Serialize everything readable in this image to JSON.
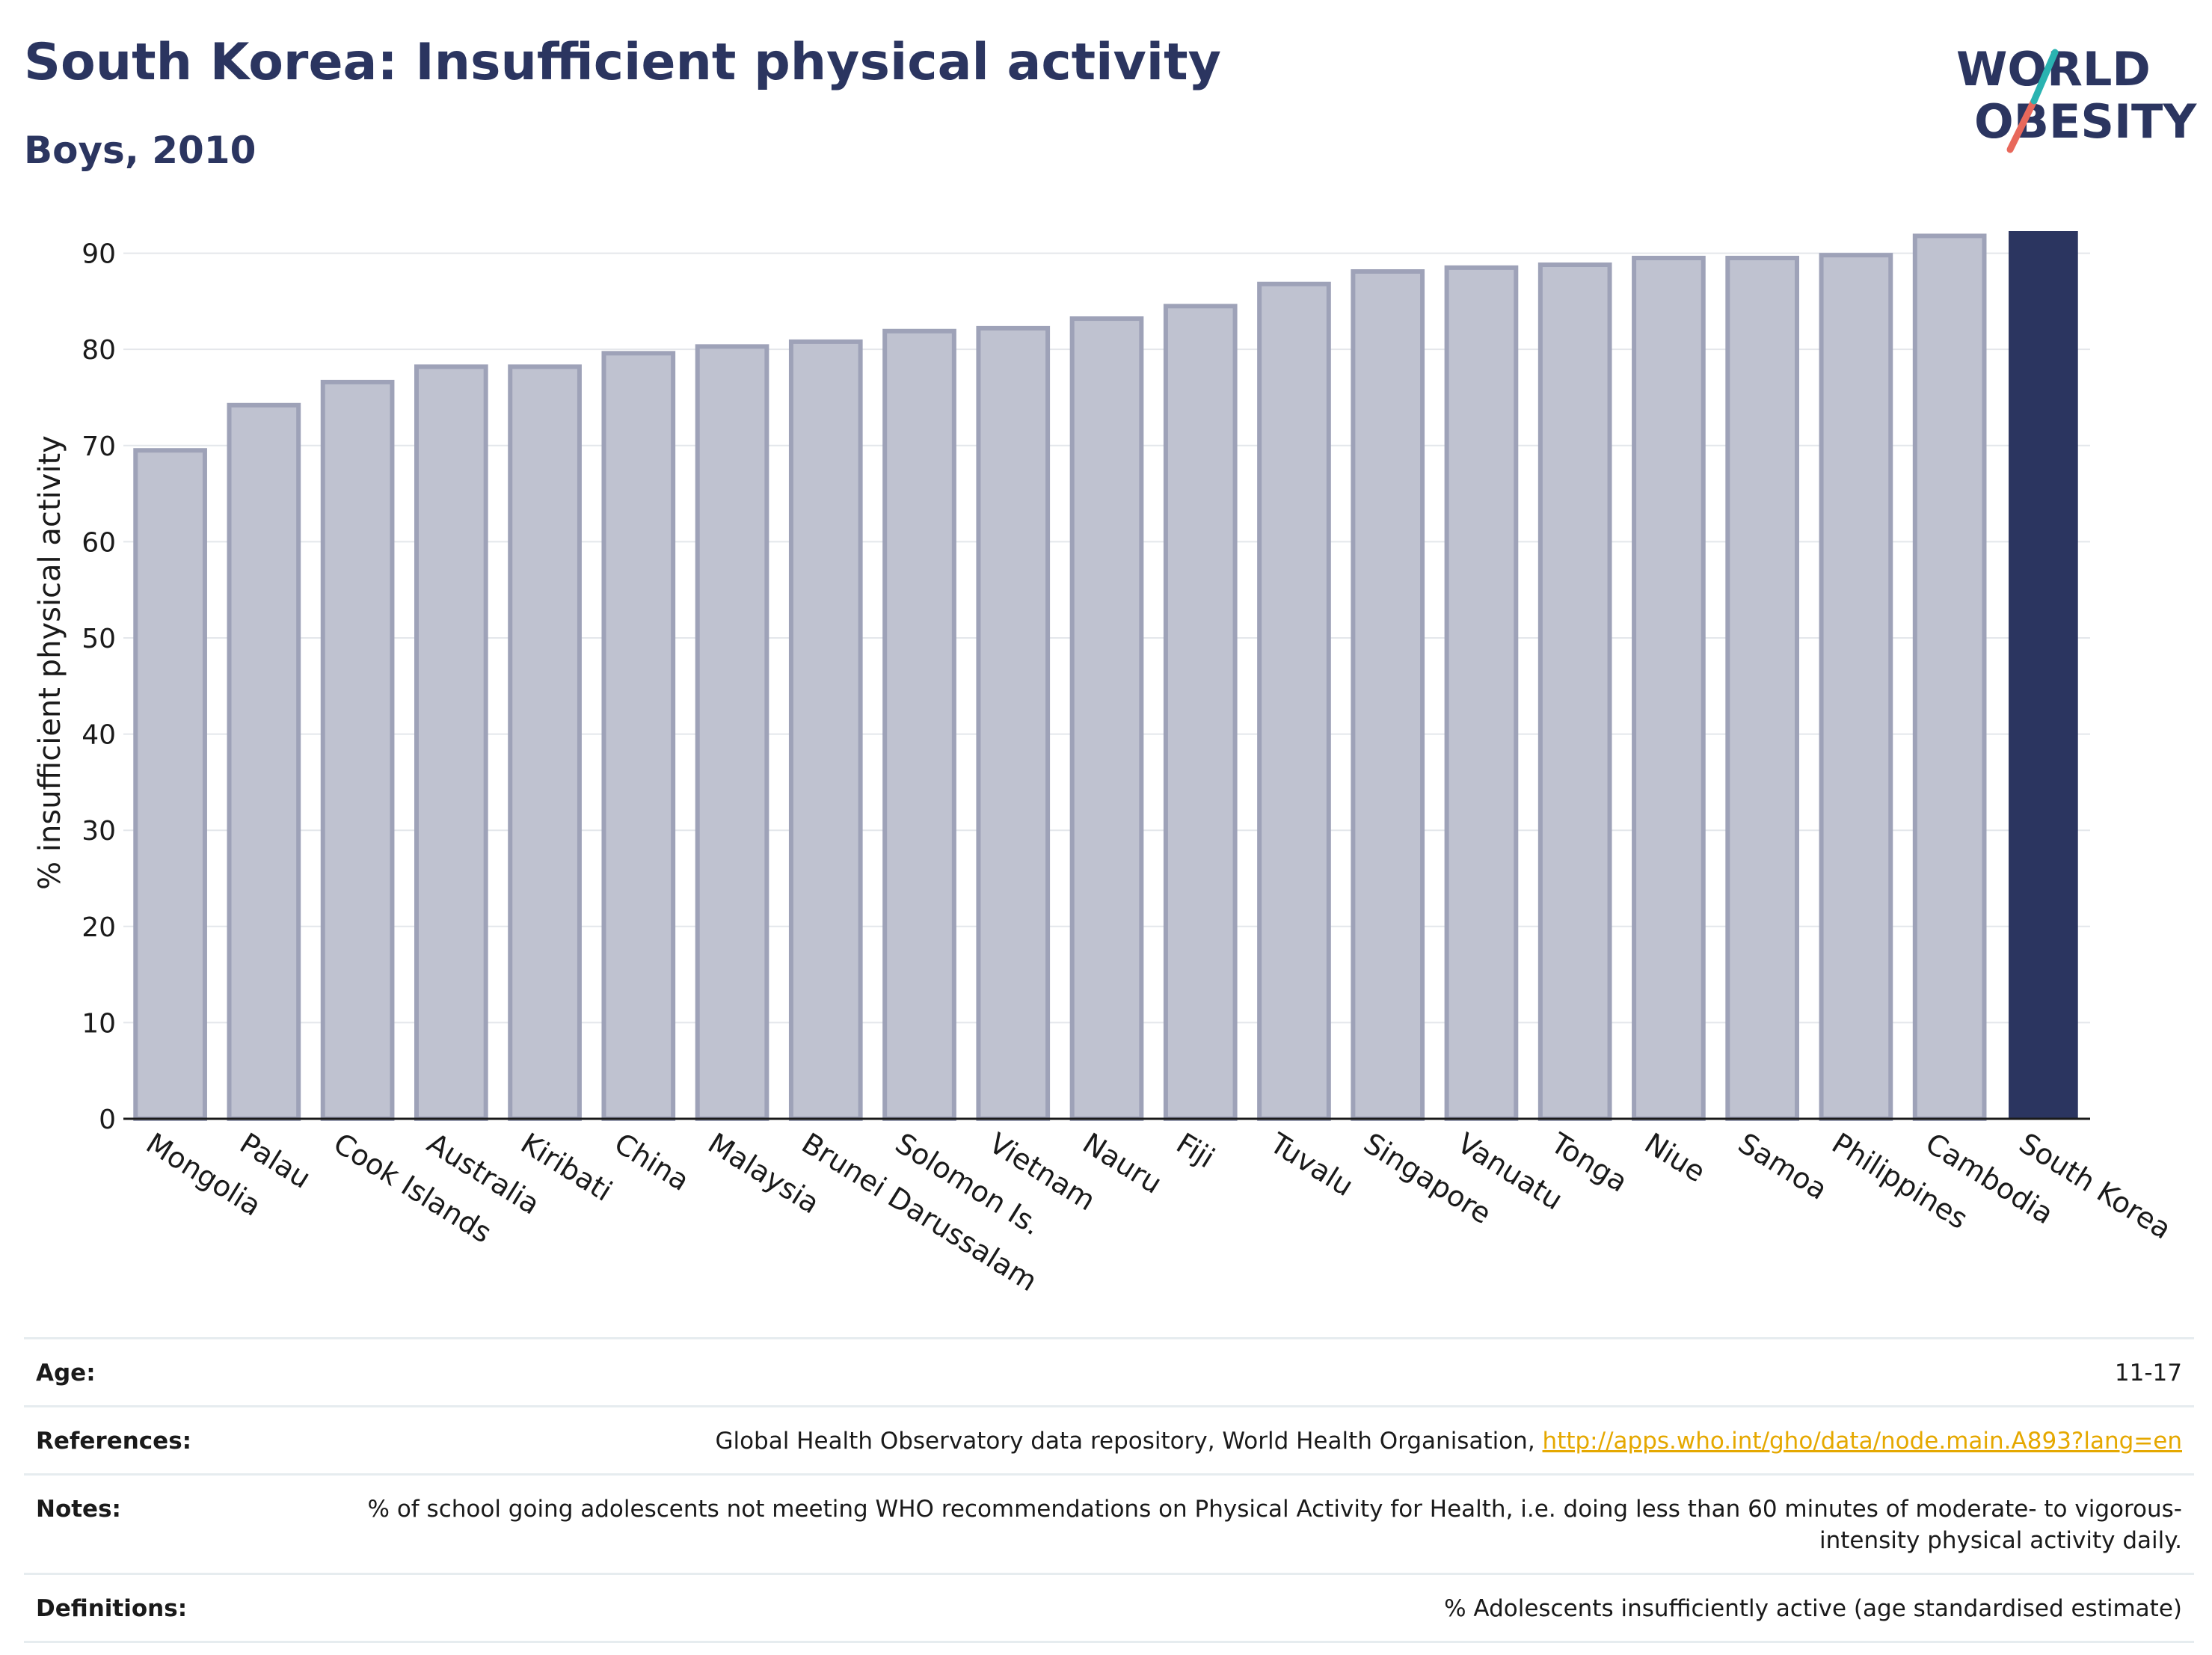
{
  "header": {
    "title": "South Korea: Insufficient physical activity",
    "subtitle": "Boys, 2010"
  },
  "logo": {
    "line1": "WORLD",
    "line2": "OBESITY"
  },
  "colors": {
    "highlight": "#2b3560",
    "bar_fill": "#bfc2d0",
    "bar_stroke": "#9ea2b8",
    "title": "#2b3560",
    "link": "#e5a800",
    "logo_teal": "#2ab3b1",
    "logo_red": "#e8685b"
  },
  "chart_data": {
    "type": "bar",
    "title": "South Korea: Insufficient physical activity",
    "subtitle": "Boys, 2010",
    "xlabel": "",
    "ylabel": "% insufficient physical activity",
    "ylim": [
      0,
      93
    ],
    "yticks": [
      0,
      10,
      20,
      30,
      40,
      50,
      60,
      70,
      80,
      90
    ],
    "grid": true,
    "highlight": "South Korea",
    "categories": [
      "Mongolia",
      "Palau",
      "Cook Islands",
      "Australia",
      "Kiribati",
      "China",
      "Malaysia",
      "Brunei Darussalam",
      "Solomon Is.",
      "Vietnam",
      "Nauru",
      "Fiji",
      "Tuvalu",
      "Singapore",
      "Vanuatu",
      "Tonga",
      "Niue",
      "Samoa",
      "Philippines",
      "Cambodia",
      "South Korea"
    ],
    "values": [
      69.5,
      74.2,
      76.6,
      78.2,
      78.2,
      79.6,
      80.3,
      80.8,
      81.9,
      82.2,
      83.2,
      84.5,
      86.8,
      88.1,
      88.5,
      88.8,
      89.5,
      89.5,
      89.8,
      91.8,
      92.3
    ]
  },
  "meta": {
    "age_label": "Age:",
    "age_value": "11-17",
    "references_label": "References:",
    "references_text": "Global Health Observatory data repository, World Health Organisation, ",
    "references_link": "http://apps.who.int/gho/data/node.main.A893?lang=en",
    "notes_label": "Notes:",
    "notes_value": "% of school going adolescents not meeting WHO recommendations on Physical Activity for Health, i.e. doing less than 60 minutes of moderate- to vigorous-intensity physical activity daily.",
    "definitions_label": "Definitions:",
    "definitions_value": "% Adolescents insufficiently active (age standardised estimate)"
  }
}
